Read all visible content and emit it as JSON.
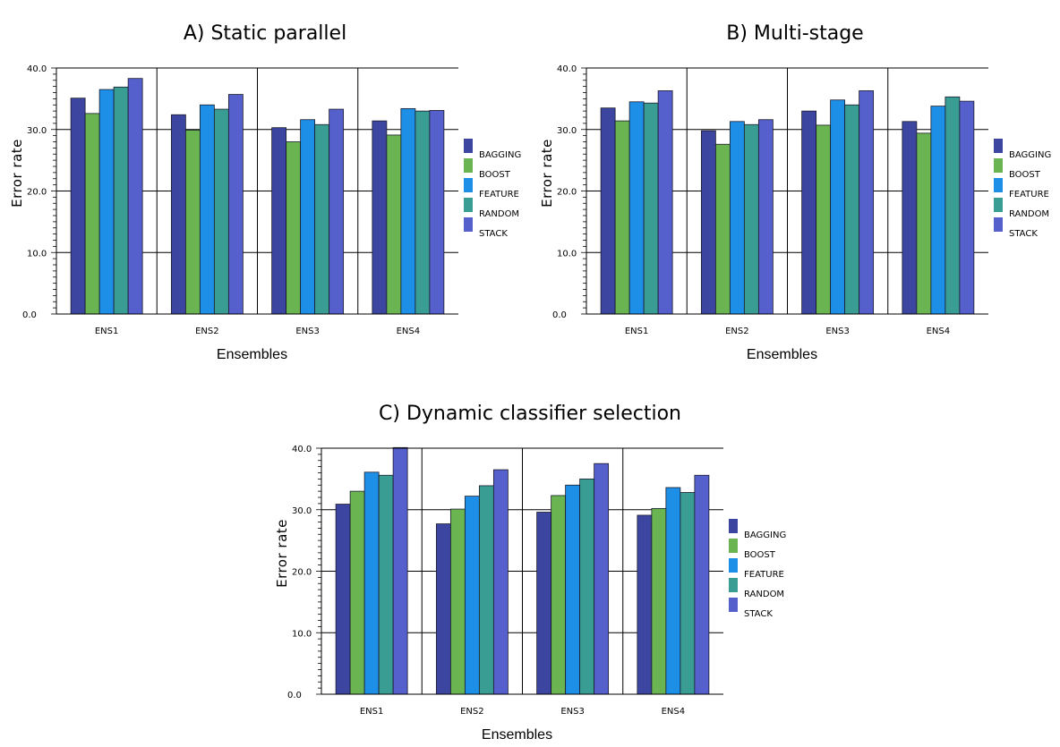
{
  "chart_data": [
    {
      "type": "bar",
      "title": "A) Static parallel",
      "xlabel": "Ensembles",
      "ylabel": "Error rate",
      "ylim": [
        0,
        40
      ],
      "yticks": [
        "0.0",
        "10.0",
        "20.0",
        "30.0",
        "40.0"
      ],
      "grid": "horizontal",
      "legend": "right",
      "categories": [
        "ENS1",
        "ENS2",
        "ENS3",
        "ENS4"
      ],
      "series": [
        {
          "name": "BAGGING",
          "color": "#3c46a0",
          "values": [
            35.1,
            32.4,
            30.3,
            31.4
          ]
        },
        {
          "name": "BOOST",
          "color": "#6ab552",
          "values": [
            32.6,
            29.9,
            28.0,
            29.1
          ]
        },
        {
          "name": "FEATURE",
          "color": "#1e8fe6",
          "values": [
            36.5,
            34.0,
            31.6,
            33.4
          ]
        },
        {
          "name": "RANDOM",
          "color": "#3a9d94",
          "values": [
            36.9,
            33.3,
            30.8,
            33.0
          ]
        },
        {
          "name": "STACK",
          "color": "#5560cc",
          "values": [
            38.3,
            35.7,
            33.3,
            33.1
          ]
        }
      ]
    },
    {
      "type": "bar",
      "title": "B) Multi-stage",
      "xlabel": "Ensembles",
      "ylabel": "Error rate",
      "ylim": [
        0,
        40
      ],
      "yticks": [
        "0.0",
        "10.0",
        "20.0",
        "30.0",
        "40.0"
      ],
      "grid": "horizontal",
      "legend": "right",
      "categories": [
        "ENS1",
        "ENS2",
        "ENS3",
        "ENS4"
      ],
      "series": [
        {
          "name": "BAGGING",
          "color": "#3c46a0",
          "values": [
            33.5,
            29.8,
            33.0,
            31.3
          ]
        },
        {
          "name": "BOOST",
          "color": "#6ab552",
          "values": [
            31.4,
            27.6,
            30.7,
            29.4
          ]
        },
        {
          "name": "FEATURE",
          "color": "#1e8fe6",
          "values": [
            34.5,
            31.3,
            34.8,
            33.8
          ]
        },
        {
          "name": "RANDOM",
          "color": "#3a9d94",
          "values": [
            34.3,
            30.8,
            34.0,
            35.3
          ]
        },
        {
          "name": "STACK",
          "color": "#5560cc",
          "values": [
            36.3,
            31.6,
            36.3,
            34.6
          ]
        }
      ]
    },
    {
      "type": "bar",
      "title": "C) Dynamic classifier selection",
      "xlabel": "Ensembles",
      "ylabel": "Error rate",
      "ylim": [
        0,
        40
      ],
      "yticks": [
        "0.0",
        "10.0",
        "20.0",
        "30.0",
        "40.0"
      ],
      "grid": "horizontal",
      "legend": "right",
      "categories": [
        "ENS1",
        "ENS2",
        "ENS3",
        "ENS4"
      ],
      "series": [
        {
          "name": "BAGGING",
          "color": "#3c46a0",
          "values": [
            30.9,
            27.7,
            29.6,
            29.1
          ]
        },
        {
          "name": "BOOST",
          "color": "#6ab552",
          "values": [
            33.0,
            30.1,
            32.3,
            30.2
          ]
        },
        {
          "name": "FEATURE",
          "color": "#1e8fe6",
          "values": [
            36.1,
            32.2,
            34.0,
            33.6
          ]
        },
        {
          "name": "RANDOM",
          "color": "#3a9d94",
          "values": [
            35.6,
            33.9,
            35.0,
            32.8
          ]
        },
        {
          "name": "STACK",
          "color": "#5560cc",
          "values": [
            40.1,
            36.5,
            37.5,
            35.6
          ]
        }
      ]
    }
  ]
}
